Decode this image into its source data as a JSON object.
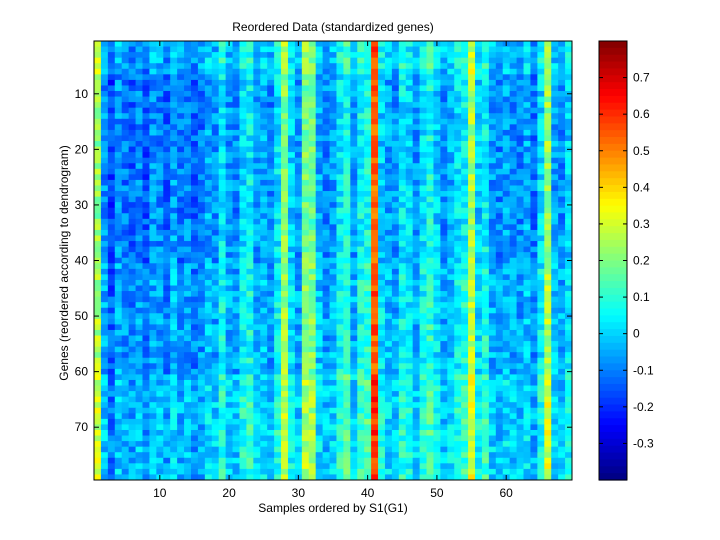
{
  "chart_data": {
    "type": "heatmap",
    "title": "Reordered Data (standardized genes)",
    "xlabel": "Samples ordered by S1(G1)",
    "ylabel": "Genes (reordered according to dendrogram)",
    "n_cols": 69,
    "n_rows": 79,
    "xlim": [
      0.5,
      69.5
    ],
    "ylim": [
      0.5,
      79.5
    ],
    "y_direction": "reversed",
    "x_ticks": [
      10,
      20,
      30,
      40,
      50,
      60
    ],
    "y_ticks": [
      10,
      20,
      30,
      40,
      50,
      60,
      70
    ],
    "colorbar": {
      "colormap": "jet",
      "clim": [
        -0.4,
        0.8
      ],
      "ticks": [
        -0.3,
        -0.2,
        -0.1,
        0,
        0.1,
        0.2,
        0.3,
        0.4,
        0.5,
        0.6,
        0.7
      ],
      "tick_labels": [
        "-0.3",
        "-0.2",
        "-0.1",
        "0",
        "0.1",
        "0.2",
        "0.3",
        "0.4",
        "0.5",
        "0.6",
        "0.7"
      ]
    },
    "baseline_value": -0.08,
    "column_means": {
      "1": 0.25,
      "2": -0.05,
      "3": -0.15,
      "4": -0.05,
      "5": -0.08,
      "6": -0.1,
      "7": -0.06,
      "8": -0.12,
      "9": -0.05,
      "10": -0.06,
      "11": -0.1,
      "12": -0.03,
      "13": -0.08,
      "14": -0.06,
      "15": -0.1,
      "16": -0.08,
      "17": -0.02,
      "18": -0.05,
      "19": 0.06,
      "20": -0.04,
      "21": -0.06,
      "22": 0.04,
      "23": 0.07,
      "24": -0.04,
      "25": -0.02,
      "26": -0.06,
      "27": 0.05,
      "28": 0.24,
      "29": 0.02,
      "30": -0.05,
      "31": 0.22,
      "32": 0.2,
      "33": -0.02,
      "34": -0.06,
      "35": -0.04,
      "36": 0.06,
      "37": 0.1,
      "38": -0.04,
      "39": 0.08,
      "40": 0.1,
      "41": 0.55,
      "42": 0.02,
      "43": -0.03,
      "44": -0.05,
      "45": 0.06,
      "46": 0.03,
      "47": -0.04,
      "48": 0.05,
      "49": 0.1,
      "50": 0.02,
      "51": -0.05,
      "52": -0.02,
      "53": 0.05,
      "54": 0.08,
      "55": 0.28,
      "56": 0.02,
      "57": 0.08,
      "58": -0.04,
      "59": -0.06,
      "60": -0.03,
      "61": -0.05,
      "62": -0.06,
      "63": -0.02,
      "64": -0.08,
      "65": 0.04,
      "66": 0.26,
      "67": -0.03,
      "68": -0.05,
      "69": 0.02
    },
    "row_offsets": [
      {
        "rows": [
          1,
          6
        ],
        "offset": 0.02
      },
      {
        "rows": [
          7,
          40
        ],
        "offset": -0.03
      },
      {
        "rows": [
          41,
          60
        ],
        "offset": 0.0
      },
      {
        "rows": [
          61,
          79
        ],
        "offset": 0.04
      }
    ],
    "noise_amplitude": 0.08
  }
}
